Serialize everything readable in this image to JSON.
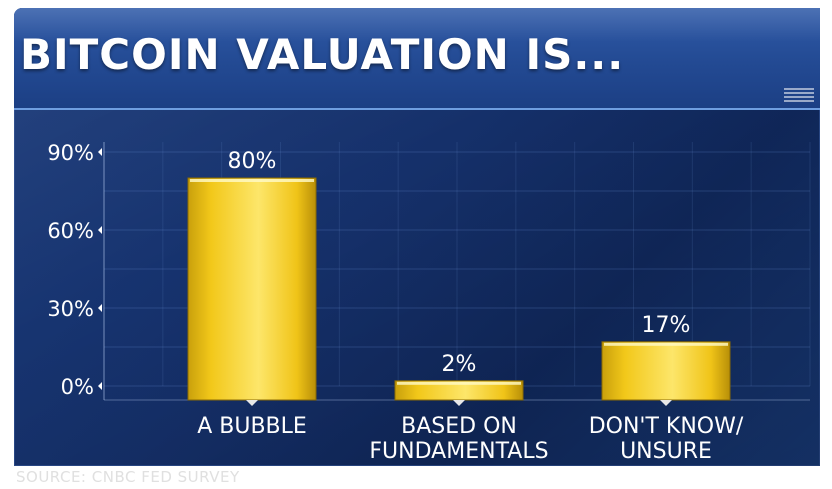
{
  "header": {
    "title": "BITCOIN VALUATION IS..."
  },
  "footer": {
    "source": "SOURCE: CNBC FED SURVEY"
  },
  "colors": {
    "bar": "#f2c81a",
    "bar_light": "#fbe76a",
    "bar_dark": "#caa10c",
    "background": "#15306a"
  },
  "chart_data": {
    "type": "bar",
    "title": "BITCOIN VALUATION IS...",
    "categories": [
      [
        "A BUBBLE"
      ],
      [
        "BASED ON",
        "FUNDAMENTALS"
      ],
      [
        "DON'T KNOW/",
        "UNSURE"
      ]
    ],
    "values": [
      80,
      2,
      17
    ],
    "value_labels": [
      "80%",
      "2%",
      "17%"
    ],
    "yticks": [
      0,
      30,
      60,
      90
    ],
    "ytick_labels": [
      "0%",
      "30%",
      "60%",
      "90%"
    ],
    "ylim": [
      0,
      90
    ],
    "grid": true,
    "legend": "none"
  }
}
